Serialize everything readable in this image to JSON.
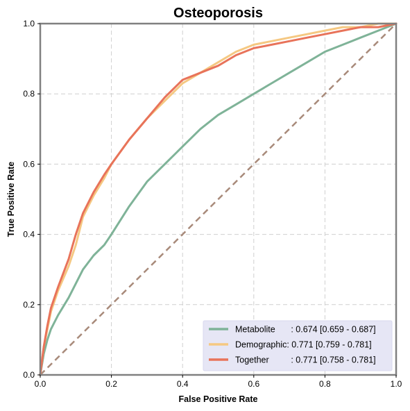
{
  "chart_data": {
    "type": "line",
    "title": "Osteoporosis",
    "xlabel": "False Positive Rate",
    "ylabel": "True Positive Rate",
    "xlim": [
      0,
      1
    ],
    "ylim": [
      0,
      1
    ],
    "xticks": [
      "0.0",
      "0.2",
      "0.4",
      "0.6",
      "0.8",
      "1.0"
    ],
    "yticks": [
      "0.0",
      "0.2",
      "0.4",
      "0.6",
      "0.8",
      "1.0"
    ],
    "grid": true,
    "legend_position": "bottom-right",
    "diagonal": {
      "x": [
        0,
        1
      ],
      "y": [
        0,
        1
      ],
      "color": "#a88a7a",
      "style": "dashed"
    },
    "series": [
      {
        "name": "Metabolite",
        "metric_label": ": 0.674 [0.659 - 0.687]",
        "color": "#7fb398",
        "x": [
          0,
          0.01,
          0.02,
          0.03,
          0.05,
          0.08,
          0.1,
          0.12,
          0.15,
          0.18,
          0.2,
          0.25,
          0.3,
          0.35,
          0.4,
          0.45,
          0.5,
          0.55,
          0.6,
          0.65,
          0.7,
          0.75,
          0.8,
          0.85,
          0.9,
          0.95,
          1.0
        ],
        "y": [
          0,
          0.06,
          0.1,
          0.13,
          0.17,
          0.22,
          0.26,
          0.3,
          0.34,
          0.37,
          0.4,
          0.48,
          0.55,
          0.6,
          0.65,
          0.7,
          0.74,
          0.77,
          0.8,
          0.83,
          0.86,
          0.89,
          0.92,
          0.94,
          0.96,
          0.98,
          1.0
        ]
      },
      {
        "name": "Demographic",
        "metric_label": ": 0.771 [0.759 - 0.781]",
        "color": "#f5c882",
        "x": [
          0,
          0.01,
          0.02,
          0.03,
          0.05,
          0.08,
          0.1,
          0.12,
          0.15,
          0.18,
          0.2,
          0.25,
          0.3,
          0.35,
          0.4,
          0.45,
          0.5,
          0.55,
          0.6,
          0.65,
          0.7,
          0.75,
          0.8,
          0.85,
          0.9,
          0.95,
          1.0
        ],
        "y": [
          0,
          0.08,
          0.13,
          0.18,
          0.24,
          0.31,
          0.37,
          0.45,
          0.51,
          0.56,
          0.6,
          0.67,
          0.73,
          0.78,
          0.83,
          0.86,
          0.89,
          0.92,
          0.94,
          0.95,
          0.96,
          0.97,
          0.98,
          0.99,
          0.99,
          1.0,
          1.0
        ]
      },
      {
        "name": "Together",
        "metric_label": ": 0.771 [0.758 - 0.781]",
        "color": "#e8735a",
        "x": [
          0,
          0.01,
          0.02,
          0.03,
          0.05,
          0.08,
          0.1,
          0.12,
          0.15,
          0.18,
          0.2,
          0.25,
          0.3,
          0.35,
          0.4,
          0.45,
          0.5,
          0.55,
          0.6,
          0.65,
          0.7,
          0.75,
          0.8,
          0.85,
          0.9,
          0.95,
          1.0
        ],
        "y": [
          0,
          0.08,
          0.14,
          0.19,
          0.25,
          0.33,
          0.4,
          0.46,
          0.52,
          0.57,
          0.6,
          0.67,
          0.73,
          0.79,
          0.84,
          0.86,
          0.88,
          0.91,
          0.93,
          0.94,
          0.95,
          0.96,
          0.97,
          0.98,
          0.99,
          0.99,
          1.0
        ]
      }
    ]
  }
}
